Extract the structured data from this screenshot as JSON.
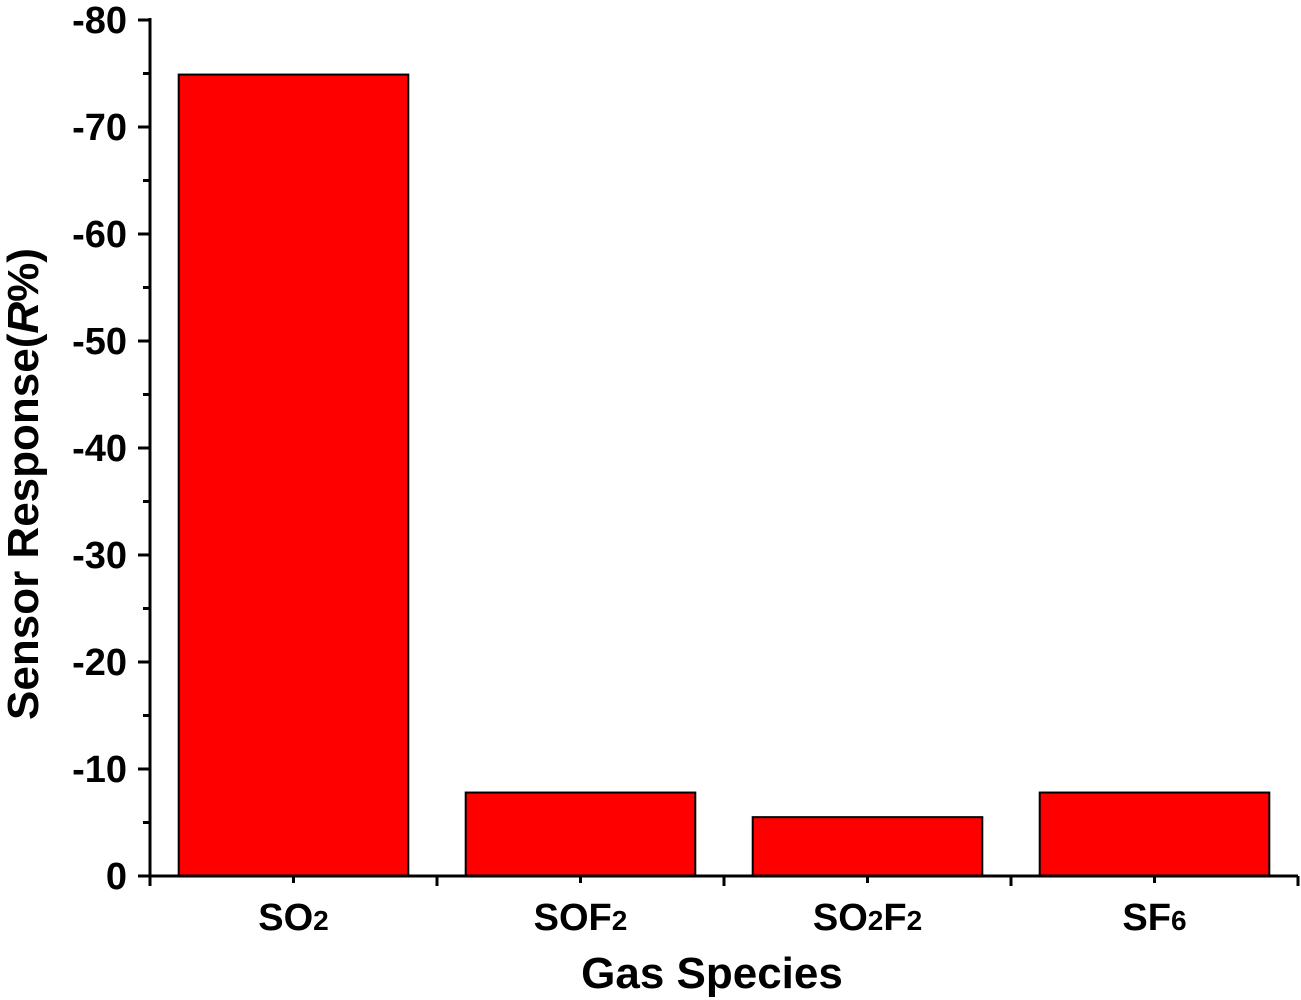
{
  "chart_data": {
    "type": "bar",
    "title": "",
    "xlabel": "Gas Species",
    "ylabel": {
      "text_before_italic": "Sensor Response(",
      "italic": "R",
      "text_after_italic": "%)"
    },
    "y_axis_reversed": true,
    "ylim": [
      0,
      -80
    ],
    "y_ticks": [
      {
        "value": 0,
        "label": "0"
      },
      {
        "value": -10,
        "label": "-10"
      },
      {
        "value": -20,
        "label": "-20"
      },
      {
        "value": -30,
        "label": "-30"
      },
      {
        "value": -40,
        "label": "-40"
      },
      {
        "value": -50,
        "label": "-50"
      },
      {
        "value": -60,
        "label": "-60"
      },
      {
        "value": -70,
        "label": "-70"
      },
      {
        "value": -80,
        "label": "-80"
      }
    ],
    "y_minor_step": 5,
    "categories": [
      {
        "base": "SO",
        "sub": "2",
        "tail": "",
        "tail_sub": ""
      },
      {
        "base": "SOF",
        "sub": "2",
        "tail": "",
        "tail_sub": ""
      },
      {
        "base": "SO",
        "sub": "2",
        "tail": "F",
        "tail_sub": "2"
      },
      {
        "base": "SF",
        "sub": "6",
        "tail": "",
        "tail_sub": ""
      }
    ],
    "values": [
      -74.9,
      -7.8,
      -5.5,
      -7.8
    ],
    "bar_color": "#ff0000",
    "bar_edge_color": "#000000",
    "grid": false,
    "legend": "none"
  }
}
